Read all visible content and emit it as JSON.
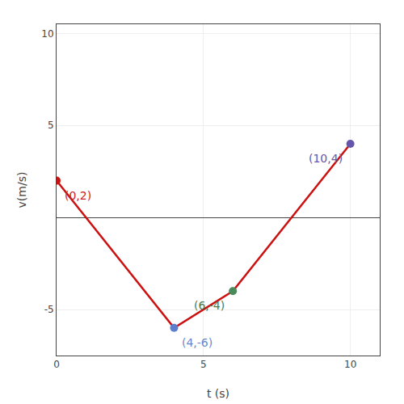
{
  "chart_data": {
    "type": "line",
    "x": [
      0,
      4,
      6,
      10
    ],
    "values": [
      2,
      -6,
      -4,
      4
    ],
    "color": "#cc1111",
    "colors": [
      "#cc1111",
      "#5b7fcc",
      "#4a8a5a",
      "#6655aa"
    ],
    "marker": "circle",
    "xlabel": "t (s)",
    "ylabel": "v(m/s)",
    "annotations": [
      {
        "text": "(0,2)",
        "x": 0,
        "y": 2,
        "color": "#cc2222"
      },
      {
        "text": "(4,-6)",
        "x": 4,
        "y": -6,
        "color": "#6688cc"
      },
      {
        "text": "(6,-4)",
        "x": 6,
        "y": -4,
        "color": "#4a7a50"
      },
      {
        "text": "(10,4)",
        "x": 10,
        "y": 4,
        "color": "#6655aa"
      }
    ],
    "xlim": [
      0,
      11.0
    ],
    "ylim": [
      -7.5,
      10.5
    ],
    "xticks": [
      0,
      5,
      10
    ],
    "yticks": [
      -5,
      5,
      10
    ],
    "grid": true
  }
}
